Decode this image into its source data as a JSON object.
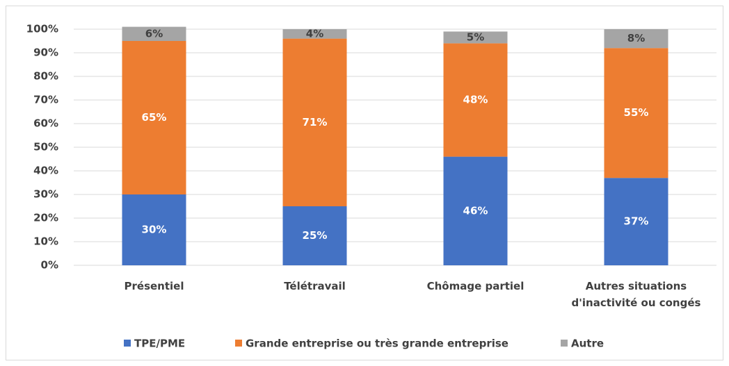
{
  "chart_data": {
    "type": "stacked_bar",
    "categories": [
      "Présentiel",
      "Télétravail",
      "Chômage partiel",
      "Autres situations d'inactivité ou congés"
    ],
    "series": [
      {
        "name": "TPE/PME",
        "color": "#4472c4",
        "values": [
          30,
          25,
          46,
          37
        ],
        "value_labels": [
          "30%",
          "25%",
          "46%",
          "37%"
        ]
      },
      {
        "name": "Grande entreprise ou très grande entreprise",
        "color": "#ed7d31",
        "values": [
          65,
          71,
          48,
          55
        ],
        "value_labels": [
          "65%",
          "71%",
          "48%",
          "55%"
        ]
      },
      {
        "name": "Autre",
        "color": "#a5a5a5",
        "values": [
          6,
          4,
          5,
          8
        ],
        "value_labels": [
          "6%",
          "4%",
          "5%",
          "8%"
        ]
      }
    ],
    "ylim": [
      0,
      100
    ],
    "yticks": [
      {
        "value": 0,
        "label": "0%"
      },
      {
        "value": 10,
        "label": "10%"
      },
      {
        "value": 20,
        "label": "20%"
      },
      {
        "value": 30,
        "label": "30%"
      },
      {
        "value": 40,
        "label": "40%"
      },
      {
        "value": 50,
        "label": "50%"
      },
      {
        "value": 60,
        "label": "60%"
      },
      {
        "value": 70,
        "label": "70%"
      },
      {
        "value": 80,
        "label": "80%"
      },
      {
        "value": 90,
        "label": "90%"
      },
      {
        "value": 100,
        "label": "100%"
      }
    ],
    "grid": true,
    "legend": "bottom"
  }
}
